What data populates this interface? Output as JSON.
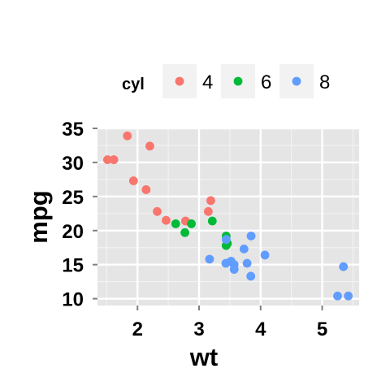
{
  "chart_data": {
    "type": "scatter",
    "title": "",
    "xlabel": "wt",
    "ylabel": "mpg",
    "xlim": [
      1.35,
      5.6
    ],
    "ylim": [
      9.0,
      35.0
    ],
    "x_ticks": [
      2,
      3,
      4,
      5
    ],
    "y_ticks": [
      10,
      15,
      20,
      25,
      30,
      35
    ],
    "grid": true,
    "legend": {
      "title": "cyl",
      "placement": "top",
      "entries": [
        {
          "label": "4",
          "color": "#F8766D"
        },
        {
          "label": "6",
          "color": "#00BA38"
        },
        {
          "label": "8",
          "color": "#619CFF"
        }
      ]
    },
    "series": [
      {
        "name": "4",
        "color": "#F8766D",
        "points": [
          [
            2.32,
            22.8
          ],
          [
            3.19,
            24.4
          ],
          [
            3.15,
            22.8
          ],
          [
            2.2,
            32.4
          ],
          [
            1.615,
            30.4
          ],
          [
            1.835,
            33.9
          ],
          [
            2.465,
            21.5
          ],
          [
            1.935,
            27.3
          ],
          [
            2.14,
            26.0
          ],
          [
            1.513,
            30.4
          ],
          [
            2.78,
            21.4
          ]
        ]
      },
      {
        "name": "6",
        "color": "#00BA38",
        "points": [
          [
            2.62,
            21.0
          ],
          [
            2.875,
            21.0
          ],
          [
            3.215,
            21.4
          ],
          [
            3.46,
            18.1
          ],
          [
            3.44,
            19.2
          ],
          [
            3.44,
            17.8
          ],
          [
            2.77,
            19.7
          ]
        ]
      },
      {
        "name": "8",
        "color": "#619CFF",
        "points": [
          [
            3.44,
            18.7
          ],
          [
            3.57,
            14.3
          ],
          [
            4.07,
            16.4
          ],
          [
            3.73,
            17.3
          ],
          [
            3.78,
            15.2
          ],
          [
            5.25,
            10.4
          ],
          [
            5.424,
            10.4
          ],
          [
            5.345,
            14.7
          ],
          [
            3.52,
            15.5
          ],
          [
            3.435,
            15.2
          ],
          [
            3.84,
            13.3
          ],
          [
            3.845,
            19.2
          ],
          [
            3.17,
            15.8
          ],
          [
            3.57,
            15.0
          ]
        ]
      }
    ]
  }
}
